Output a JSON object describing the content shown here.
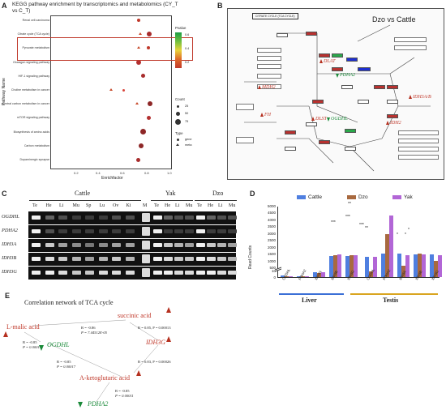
{
  "panel_letters": {
    "a": "A",
    "b": "B",
    "c": "C",
    "d": "D",
    "e": "E"
  },
  "panelA": {
    "title": "KEGG pathway enrichment by transcriptomics and metabolomics (CY_T vs C_T)",
    "ylabel": "Pathway Name",
    "xlabel": "Enrichfactor",
    "xticks": [
      "0.2",
      "0.4",
      "0.6",
      "0.8",
      "1.0"
    ],
    "pathways": [
      "Renal cell carcinoma",
      "Citrate cycle (TCA cycle)",
      "Pyruvate metabolism",
      "Glucagon signaling pathway",
      "HIF-1 signaling pathway",
      "Choline metabolism in cancer",
      "Central carbon metabolism in cancer",
      "mTOR signaling pathway",
      "Biosynthesis of amino acids",
      "Carbon metabolism",
      "Dopaminergic synapse"
    ],
    "legend": {
      "pvalue_label": "Pvalue",
      "pvalue_ticks": [
        "0.6",
        "0.4",
        "0.2"
      ],
      "count_label": "Count",
      "count_values": [
        "25",
        "50",
        "75"
      ],
      "type_label": "Type",
      "type_values": [
        "gene",
        "meta"
      ]
    },
    "colors": {
      "low_p": "#c0392b",
      "high_p": "#1b9e45",
      "highlight_box": "#c0392b"
    }
  },
  "panelB": {
    "map_title": "CITRATE CYCLE (TCA CYCLE)",
    "species": "Dzo vs Cattle",
    "genes_up": [
      "DLAT",
      "MDH2",
      "FH",
      "DLST",
      "IDH2",
      "IDH3A/B"
    ],
    "genes_down": [
      "PDHA2",
      "OGDHL"
    ]
  },
  "panelC": {
    "species": [
      "Cattle",
      "Yak",
      "Dzo"
    ],
    "marker": "M",
    "tissues_cattle": [
      "Te",
      "He",
      "Li",
      "Mu",
      "Sp",
      "Lu",
      "Ov",
      "Ki"
    ],
    "tissues_yak": [
      "Te",
      "He",
      "Li",
      "Mu"
    ],
    "tissues_dzo": [
      "Te",
      "He",
      "Li",
      "Mu"
    ],
    "genes": [
      "OGDHL",
      "PDHA2",
      "IDH3A",
      "IDH3B",
      "IDH3G"
    ]
  },
  "panelD": {
    "legend": [
      "Cattle",
      "Dzo",
      "Yak"
    ],
    "colors": {
      "Cattle": "#4f7fe0",
      "Dzo": "#a8693f",
      "Yak": "#b266d6"
    },
    "ylabel": "Read Counts",
    "yticks_upper": [
      "5000",
      "4500",
      "4000",
      "3500",
      "3000",
      "2500",
      "2000",
      "1500",
      "1000",
      "500"
    ],
    "yticks_lower": [
      "10",
      "0"
    ],
    "genes": [
      "OGDHL",
      "PDHA2",
      "IDH3A",
      "IDH3B",
      "IDH3G"
    ],
    "tissues": [
      "Liver",
      "Testis"
    ],
    "star_labels": [
      "***",
      "***",
      "**",
      "***",
      "**",
      "*",
      "*",
      "*"
    ],
    "chart_data": {
      "type": "bar",
      "categories": [
        "Liver OGDHL",
        "Liver PDHA2",
        "Liver IDH3A",
        "Liver IDH3B",
        "Liver IDH3G",
        "Testis OGDHL",
        "Testis PDHA2",
        "Testis IDH3A",
        "Testis IDH3B",
        "Testis IDH3G"
      ],
      "series": [
        {
          "name": "Cattle",
          "values": [
            2,
            1,
            150,
            1350,
            1350,
            1300,
            1500,
            1500,
            1450,
            1450
          ]
        },
        {
          "name": "Dzo",
          "values": [
            1,
            1,
            100,
            1400,
            1400,
            220,
            2900,
            600,
            1500,
            950
          ]
        },
        {
          "name": "Yak",
          "values": [
            1,
            1,
            160,
            1450,
            1400,
            1300,
            4300,
            1400,
            1450,
            1400
          ]
        }
      ],
      "ylabel": "Read Counts",
      "ylim": [
        0,
        5000
      ]
    }
  },
  "panelE": {
    "title": "Correlation network of TCA cycle",
    "nodes": {
      "malic": "L-malic acid",
      "succinic": "succinic acid",
      "idh3g": "IDH3G",
      "ogdhl": "OGDHL",
      "akg": "A-ketoglutaric acid",
      "pdha2": "PDHA2"
    },
    "stats": {
      "s1": [
        "R = -0.86",
        "P = 7.44512E-05"
      ],
      "s2": [
        "R = 0.85, P = 0.00013"
      ],
      "s3": [
        "R = -0.85",
        "P = 0.0001"
      ],
      "s4": [
        "R = -0.85",
        "P = 0.00017"
      ],
      "s5": [
        "R = 0.83, P = 0.00026"
      ],
      "s6": [
        "R = -0.85",
        "P = 0.00011"
      ]
    }
  }
}
